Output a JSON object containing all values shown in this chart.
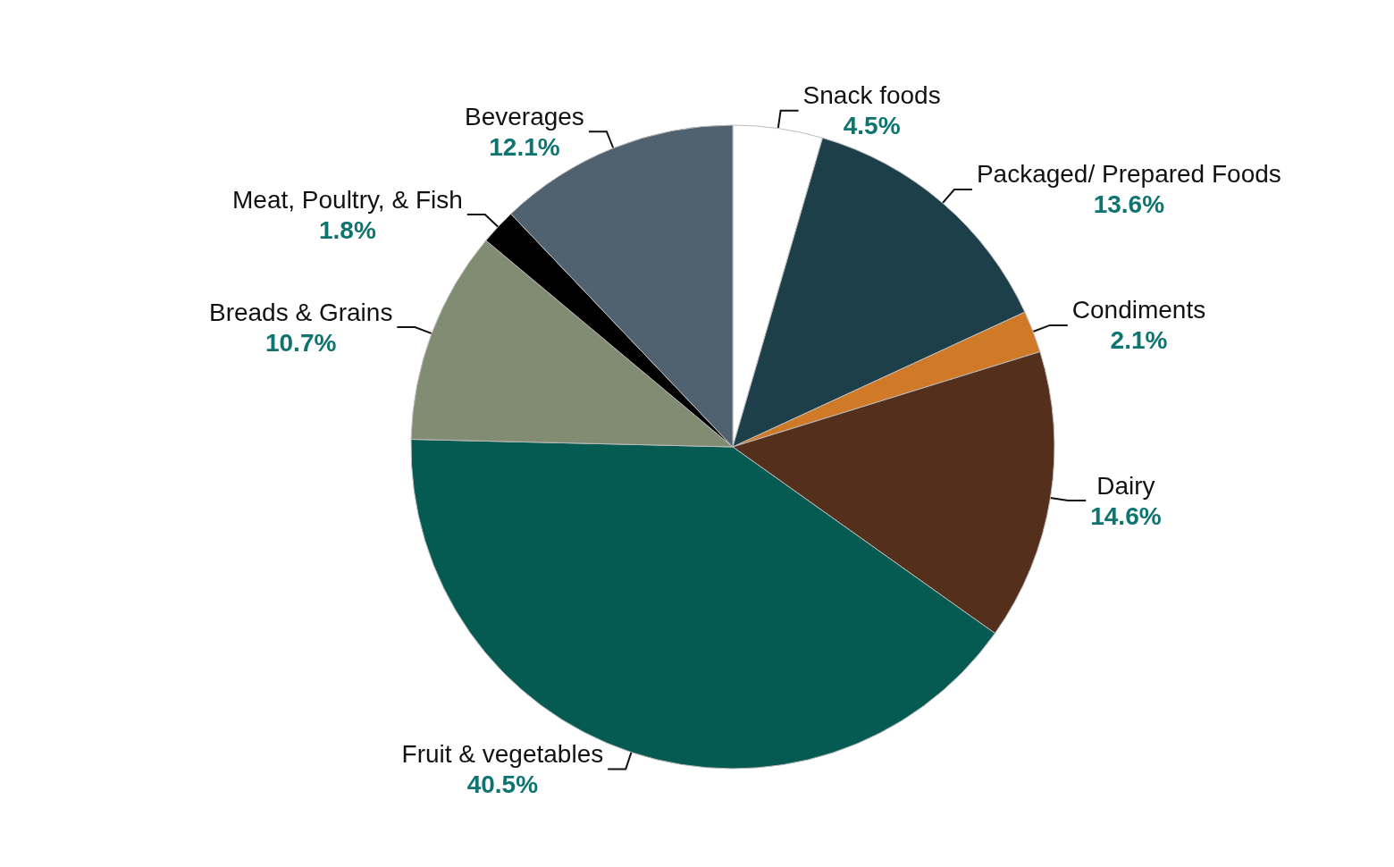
{
  "chart_data": {
    "type": "pie",
    "categories": [
      "Snack foods",
      "Packaged/ Prepared Foods",
      "Condiments",
      "Dairy",
      "Fruit & vegetables",
      "Breads & Grains",
      "Meat, Poultry, & Fish",
      "Beverages"
    ],
    "values": [
      4.5,
      13.6,
      2.1,
      14.6,
      40.5,
      10.7,
      1.8,
      12.1
    ],
    "colors": [
      "#ffffff",
      "#1c3f4a",
      "#d07a28",
      "#532f1c",
      "#055a52",
      "#828c72",
      "#000000",
      "#50616f"
    ],
    "value_labels": [
      "4.5%",
      "13.6%",
      "2.1%",
      "14.6%",
      "40.5%",
      "10.7%",
      "1.8%",
      "12.1%"
    ],
    "legend": false
  }
}
